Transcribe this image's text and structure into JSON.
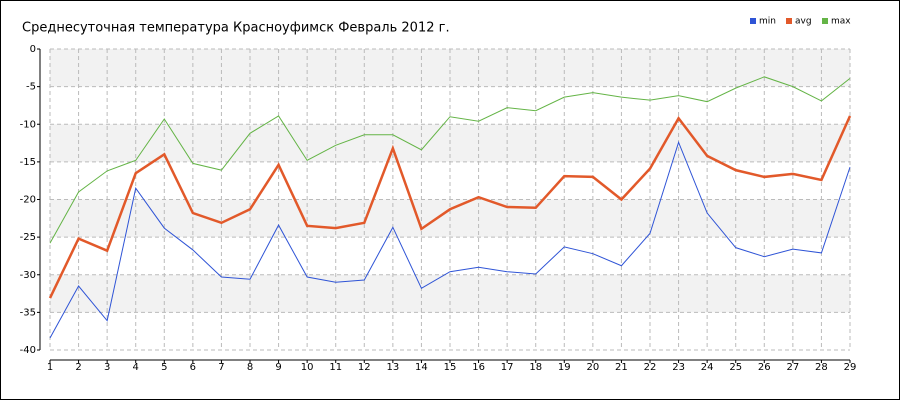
{
  "chart_data": {
    "type": "line",
    "title": "Среднесуточная температура Красноуфимск  Февраль 2012 г.",
    "x": [
      1,
      2,
      3,
      4,
      5,
      6,
      7,
      8,
      9,
      10,
      11,
      12,
      13,
      14,
      15,
      16,
      17,
      18,
      19,
      20,
      21,
      22,
      23,
      24,
      25,
      26,
      27,
      28,
      29
    ],
    "xlim": [
      1,
      29
    ],
    "xticks": [
      1,
      2,
      3,
      4,
      5,
      6,
      7,
      8,
      9,
      10,
      11,
      12,
      13,
      14,
      15,
      16,
      17,
      18,
      19,
      20,
      21,
      22,
      23,
      24,
      25,
      26,
      27,
      28,
      29
    ],
    "ylim": [
      -40,
      0
    ],
    "yticks": [
      0,
      -5,
      -10,
      -15,
      -20,
      -25,
      -30,
      -35,
      -40
    ],
    "grid": true,
    "legend": "top-right",
    "series": [
      {
        "name": "min",
        "color": "#2f54d6",
        "values": [
          -38.4,
          -31.5,
          -36.1,
          -18.5,
          -23.8,
          -26.7,
          -30.3,
          -30.6,
          -23.4,
          -30.3,
          -31.0,
          -30.7,
          -23.7,
          -31.8,
          -29.6,
          -29.0,
          -29.6,
          -29.9,
          -26.3,
          -27.2,
          -28.8,
          -24.5,
          -12.4,
          -21.8,
          -26.4,
          -27.6,
          -26.6,
          -27.1,
          -15.7
        ]
      },
      {
        "name": "avg",
        "color": "#e2592a",
        "values": [
          -33.1,
          -25.2,
          -26.8,
          -16.5,
          -14.0,
          -21.8,
          -23.1,
          -21.3,
          -15.4,
          -23.5,
          -23.8,
          -23.1,
          -13.2,
          -23.9,
          -21.3,
          -19.7,
          -21.0,
          -21.1,
          -16.9,
          -17.0,
          -20.0,
          -15.9,
          -9.2,
          -14.2,
          -16.1,
          -17.0,
          -16.6,
          -17.4,
          -8.9
        ]
      },
      {
        "name": "max",
        "color": "#64b446",
        "values": [
          -25.8,
          -19.0,
          -16.2,
          -14.8,
          -9.3,
          -15.2,
          -16.1,
          -11.2,
          -8.9,
          -14.8,
          -12.8,
          -11.4,
          -11.4,
          -13.4,
          -9.0,
          -9.6,
          -7.8,
          -8.2,
          -6.4,
          -5.8,
          -6.4,
          -6.8,
          -6.2,
          -7.0,
          -5.2,
          -3.7,
          -5.0,
          -6.9,
          -3.9
        ]
      }
    ]
  }
}
